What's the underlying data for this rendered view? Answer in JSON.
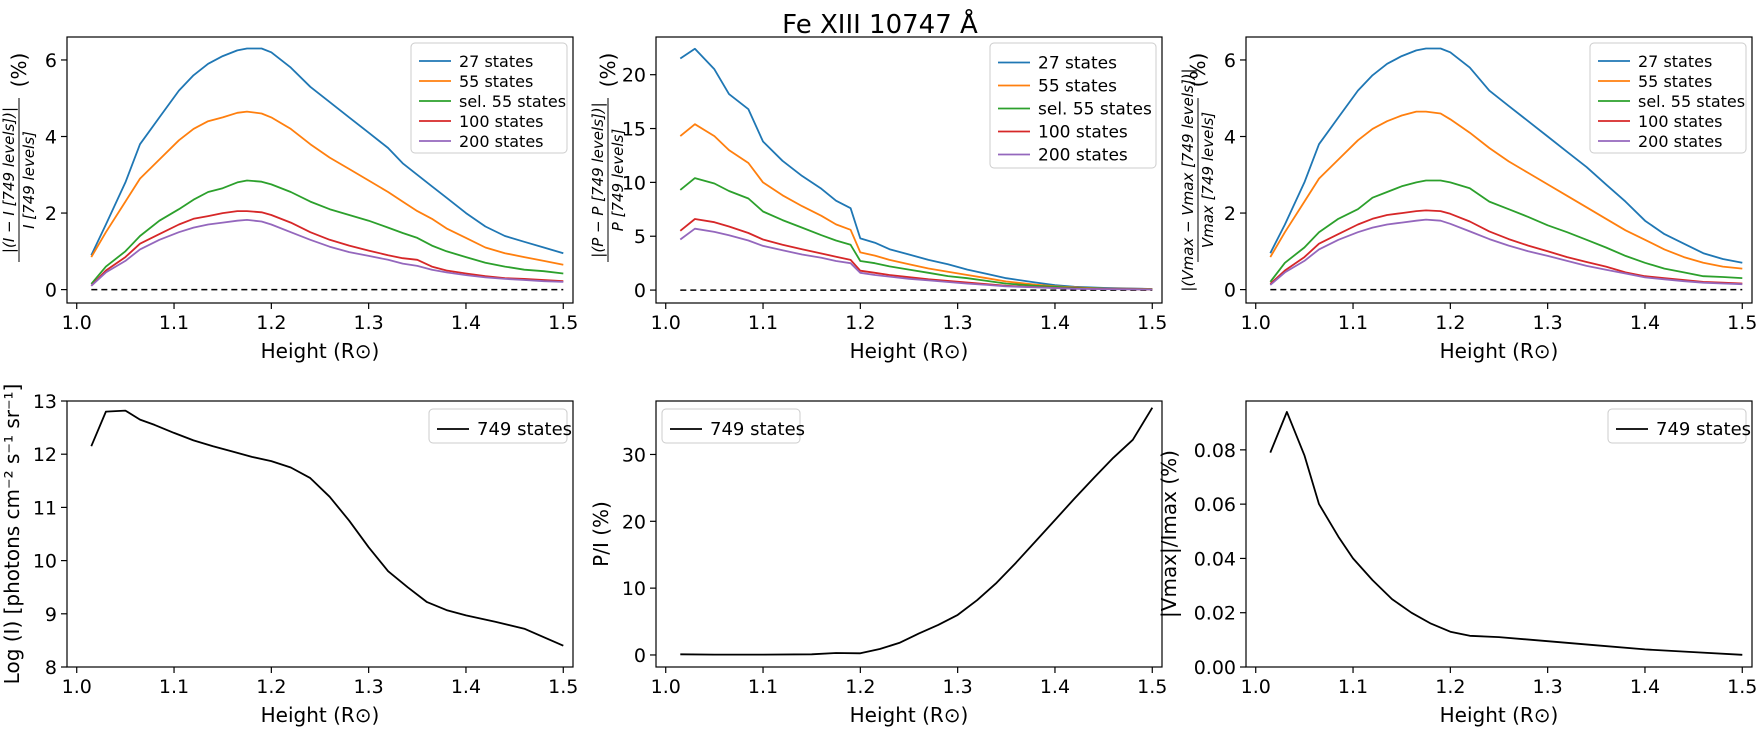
{
  "figure": {
    "title": "Fe XIII 10747 Å"
  },
  "chart_data": [
    {
      "id": "p1",
      "type": "line",
      "xlabel": "Height (R⊙)",
      "xlim": [
        0.99,
        1.51
      ],
      "ylim": [
        -0.35,
        6.6
      ],
      "xticks": [
        1.0,
        1.1,
        1.2,
        1.3,
        1.4,
        1.5
      ],
      "xticklabels": [
        "1.0",
        "1.1",
        "1.2",
        "1.3",
        "1.4",
        "1.5"
      ],
      "yticks": [
        0,
        2,
        4,
        6
      ],
      "yticklabels": [
        "0",
        "2",
        "4",
        "6"
      ],
      "ylabel_parts": {
        "numerator": "|(I − I [749 levels])|",
        "denominator": "I [749 levels]",
        "unit": "(%)"
      },
      "legend": "top-right",
      "x": [
        1.015,
        1.03,
        1.05,
        1.065,
        1.085,
        1.105,
        1.12,
        1.135,
        1.15,
        1.165,
        1.175,
        1.19,
        1.2,
        1.22,
        1.24,
        1.26,
        1.28,
        1.3,
        1.32,
        1.335,
        1.35,
        1.365,
        1.38,
        1.4,
        1.42,
        1.44,
        1.46,
        1.48,
        1.5
      ],
      "series": [
        {
          "name": "27 states",
          "color": "#1f77b4",
          "values": [
            0.9,
            1.7,
            2.8,
            3.8,
            4.5,
            5.2,
            5.6,
            5.9,
            6.1,
            6.25,
            6.3,
            6.3,
            6.2,
            5.8,
            5.3,
            4.9,
            4.5,
            4.1,
            3.7,
            3.3,
            3.0,
            2.7,
            2.4,
            2.0,
            1.65,
            1.4,
            1.25,
            1.1,
            0.95
          ]
        },
        {
          "name": "55 states",
          "color": "#ff7f0e",
          "values": [
            0.85,
            1.5,
            2.3,
            2.9,
            3.4,
            3.9,
            4.2,
            4.4,
            4.5,
            4.62,
            4.65,
            4.6,
            4.5,
            4.2,
            3.8,
            3.45,
            3.15,
            2.85,
            2.55,
            2.3,
            2.05,
            1.85,
            1.6,
            1.35,
            1.1,
            0.95,
            0.85,
            0.75,
            0.65
          ]
        },
        {
          "name": "sel. 55 states",
          "color": "#2ca02c",
          "values": [
            0.15,
            0.6,
            1.0,
            1.4,
            1.8,
            2.1,
            2.35,
            2.55,
            2.65,
            2.8,
            2.85,
            2.82,
            2.75,
            2.55,
            2.3,
            2.1,
            1.95,
            1.8,
            1.62,
            1.48,
            1.35,
            1.15,
            1.0,
            0.85,
            0.7,
            0.6,
            0.52,
            0.48,
            0.42
          ]
        },
        {
          "name": "100 states",
          "color": "#d62728",
          "values": [
            0.1,
            0.5,
            0.85,
            1.2,
            1.45,
            1.7,
            1.85,
            1.92,
            2.0,
            2.05,
            2.05,
            2.02,
            1.95,
            1.75,
            1.5,
            1.3,
            1.15,
            1.02,
            0.9,
            0.82,
            0.78,
            0.6,
            0.5,
            0.42,
            0.35,
            0.3,
            0.28,
            0.25,
            0.22
          ]
        },
        {
          "name": "200 states",
          "color": "#9467bd",
          "values": [
            0.1,
            0.45,
            0.75,
            1.05,
            1.3,
            1.5,
            1.62,
            1.7,
            1.75,
            1.8,
            1.82,
            1.78,
            1.7,
            1.5,
            1.3,
            1.12,
            0.98,
            0.88,
            0.78,
            0.68,
            0.62,
            0.52,
            0.45,
            0.38,
            0.32,
            0.28,
            0.25,
            0.22,
            0.2
          ]
        }
      ],
      "reference_line": {
        "y": 0,
        "style": "dashed"
      }
    },
    {
      "id": "p2",
      "type": "line",
      "xlabel": "Height (R⊙)",
      "xlim": [
        0.99,
        1.51
      ],
      "ylim": [
        -1.2,
        23.5
      ],
      "xticks": [
        1.0,
        1.1,
        1.2,
        1.3,
        1.4,
        1.5
      ],
      "xticklabels": [
        "1.0",
        "1.1",
        "1.2",
        "1.3",
        "1.4",
        "1.5"
      ],
      "yticks": [
        0,
        5,
        10,
        15,
        20
      ],
      "yticklabels": [
        "0",
        "5",
        "10",
        "15",
        "20"
      ],
      "ylabel_parts": {
        "numerator": "|(P − P [749 levels])|",
        "denominator": "P [749 levels]",
        "unit": "(%)"
      },
      "legend": "top-right",
      "x": [
        1.015,
        1.03,
        1.05,
        1.065,
        1.085,
        1.1,
        1.12,
        1.14,
        1.16,
        1.175,
        1.19,
        1.2,
        1.215,
        1.23,
        1.25,
        1.27,
        1.29,
        1.31,
        1.33,
        1.35,
        1.38,
        1.4,
        1.42,
        1.45,
        1.48,
        1.5
      ],
      "series": [
        {
          "name": "27 states",
          "color": "#1f77b4",
          "values": [
            21.5,
            22.4,
            20.5,
            18.2,
            16.8,
            13.8,
            12.0,
            10.6,
            9.4,
            8.3,
            7.6,
            4.8,
            4.4,
            3.8,
            3.3,
            2.8,
            2.4,
            1.9,
            1.5,
            1.1,
            0.7,
            0.45,
            0.3,
            0.2,
            0.15,
            0.1
          ]
        },
        {
          "name": "55 states",
          "color": "#ff7f0e",
          "values": [
            14.3,
            15.4,
            14.3,
            13.0,
            11.8,
            10.0,
            8.8,
            7.8,
            6.9,
            6.1,
            5.6,
            3.5,
            3.2,
            2.8,
            2.4,
            2.0,
            1.7,
            1.4,
            1.1,
            0.8,
            0.5,
            0.35,
            0.25,
            0.15,
            0.12,
            0.1
          ]
        },
        {
          "name": "sel. 55 states",
          "color": "#2ca02c",
          "values": [
            9.3,
            10.4,
            9.9,
            9.2,
            8.5,
            7.3,
            6.5,
            5.8,
            5.1,
            4.6,
            4.2,
            2.7,
            2.5,
            2.2,
            1.9,
            1.6,
            1.3,
            1.1,
            0.85,
            0.6,
            0.4,
            0.3,
            0.2,
            0.12,
            0.1,
            0.08
          ]
        },
        {
          "name": "100 states",
          "color": "#d62728",
          "values": [
            5.5,
            6.6,
            6.3,
            5.9,
            5.3,
            4.7,
            4.2,
            3.8,
            3.4,
            3.1,
            2.8,
            1.8,
            1.6,
            1.4,
            1.2,
            1.0,
            0.85,
            0.7,
            0.55,
            0.4,
            0.28,
            0.2,
            0.15,
            0.1,
            0.08,
            0.06
          ]
        },
        {
          "name": "200 states",
          "color": "#9467bd",
          "values": [
            4.7,
            5.7,
            5.4,
            5.1,
            4.6,
            4.1,
            3.7,
            3.3,
            3.0,
            2.7,
            2.5,
            1.6,
            1.4,
            1.25,
            1.05,
            0.9,
            0.75,
            0.6,
            0.48,
            0.35,
            0.25,
            0.18,
            0.12,
            0.09,
            0.07,
            0.05
          ]
        }
      ],
      "reference_line": {
        "y": 0,
        "style": "dashed"
      }
    },
    {
      "id": "p3",
      "type": "line",
      "xlabel": "Height (R⊙)",
      "xlim": [
        0.99,
        1.51
      ],
      "ylim": [
        -0.35,
        6.6
      ],
      "xticks": [
        1.0,
        1.1,
        1.2,
        1.3,
        1.4,
        1.5
      ],
      "xticklabels": [
        "1.0",
        "1.1",
        "1.2",
        "1.3",
        "1.4",
        "1.5"
      ],
      "yticks": [
        0,
        2,
        4,
        6
      ],
      "yticklabels": [
        "0",
        "2",
        "4",
        "6"
      ],
      "ylabel_parts": {
        "numerator": "|(Vmax − Vmax [749 levels])|",
        "denominator": "Vmax [749 levels]",
        "unit": "(%)"
      },
      "legend": "top-right",
      "x": [
        1.015,
        1.03,
        1.05,
        1.065,
        1.085,
        1.105,
        1.12,
        1.135,
        1.15,
        1.165,
        1.175,
        1.19,
        1.2,
        1.22,
        1.24,
        1.26,
        1.28,
        1.3,
        1.32,
        1.34,
        1.36,
        1.38,
        1.4,
        1.42,
        1.44,
        1.46,
        1.48,
        1.5
      ],
      "series": [
        {
          "name": "27 states",
          "color": "#1f77b4",
          "values": [
            0.95,
            1.7,
            2.8,
            3.8,
            4.5,
            5.2,
            5.6,
            5.9,
            6.1,
            6.25,
            6.3,
            6.3,
            6.2,
            5.8,
            5.2,
            4.8,
            4.4,
            4.0,
            3.6,
            3.2,
            2.75,
            2.3,
            1.8,
            1.45,
            1.2,
            0.95,
            0.8,
            0.7
          ]
        },
        {
          "name": "55 states",
          "color": "#ff7f0e",
          "values": [
            0.85,
            1.5,
            2.3,
            2.9,
            3.4,
            3.9,
            4.2,
            4.4,
            4.55,
            4.65,
            4.65,
            4.6,
            4.45,
            4.1,
            3.7,
            3.35,
            3.05,
            2.75,
            2.45,
            2.15,
            1.85,
            1.55,
            1.3,
            1.05,
            0.85,
            0.7,
            0.6,
            0.55
          ]
        },
        {
          "name": "sel. 55 states",
          "color": "#2ca02c",
          "values": [
            0.2,
            0.7,
            1.1,
            1.5,
            1.85,
            2.1,
            2.4,
            2.55,
            2.7,
            2.8,
            2.85,
            2.85,
            2.8,
            2.65,
            2.3,
            2.1,
            1.9,
            1.68,
            1.5,
            1.3,
            1.1,
            0.88,
            0.7,
            0.55,
            0.45,
            0.35,
            0.33,
            0.3
          ]
        },
        {
          "name": "100 states",
          "color": "#d62728",
          "values": [
            0.15,
            0.5,
            0.85,
            1.2,
            1.45,
            1.7,
            1.85,
            1.95,
            2.0,
            2.05,
            2.07,
            2.05,
            1.98,
            1.78,
            1.52,
            1.32,
            1.15,
            1.0,
            0.85,
            0.72,
            0.6,
            0.45,
            0.35,
            0.3,
            0.25,
            0.2,
            0.18,
            0.16
          ]
        },
        {
          "name": "200 states",
          "color": "#9467bd",
          "values": [
            0.12,
            0.45,
            0.75,
            1.05,
            1.3,
            1.5,
            1.62,
            1.7,
            1.75,
            1.8,
            1.83,
            1.8,
            1.72,
            1.52,
            1.32,
            1.15,
            1.0,
            0.88,
            0.75,
            0.62,
            0.52,
            0.42,
            0.32,
            0.27,
            0.22,
            0.18,
            0.16,
            0.14
          ]
        }
      ],
      "reference_line": {
        "y": 0,
        "style": "dashed"
      }
    },
    {
      "id": "p4",
      "type": "line",
      "xlabel": "Height (R⊙)",
      "xlim": [
        0.99,
        1.51
      ],
      "ylim": [
        8,
        13
      ],
      "xticks": [
        1.0,
        1.1,
        1.2,
        1.3,
        1.4,
        1.5
      ],
      "xticklabels": [
        "1.0",
        "1.1",
        "1.2",
        "1.3",
        "1.4",
        "1.5"
      ],
      "yticks": [
        8,
        9,
        10,
        11,
        12,
        13
      ],
      "yticklabels": [
        "8",
        "9",
        "10",
        "11",
        "12",
        "13"
      ],
      "ylabel": "Log (I) [photons cm⁻² s⁻¹ sr⁻¹]",
      "legend": "top-right",
      "x": [
        1.015,
        1.03,
        1.05,
        1.065,
        1.08,
        1.1,
        1.12,
        1.14,
        1.16,
        1.18,
        1.2,
        1.22,
        1.24,
        1.26,
        1.28,
        1.3,
        1.32,
        1.34,
        1.36,
        1.38,
        1.4,
        1.43,
        1.46,
        1.5
      ],
      "series": [
        {
          "name": "749 states",
          "color": "#000000",
          "values": [
            12.15,
            12.8,
            12.82,
            12.65,
            12.55,
            12.4,
            12.26,
            12.15,
            12.05,
            11.95,
            11.87,
            11.75,
            11.55,
            11.2,
            10.75,
            10.25,
            9.8,
            9.5,
            9.22,
            9.07,
            8.97,
            8.85,
            8.72,
            8.4
          ]
        }
      ]
    },
    {
      "id": "p5",
      "type": "line",
      "xlabel": "Height (R⊙)",
      "xlim": [
        0.99,
        1.51
      ],
      "ylim": [
        -1.8,
        38
      ],
      "xticks": [
        1.0,
        1.1,
        1.2,
        1.3,
        1.4,
        1.5
      ],
      "xticklabels": [
        "1.0",
        "1.1",
        "1.2",
        "1.3",
        "1.4",
        "1.5"
      ],
      "yticks": [
        0,
        10,
        20,
        30
      ],
      "yticklabels": [
        "0",
        "10",
        "20",
        "30"
      ],
      "ylabel": "P/I (%)",
      "legend": "top-left",
      "x": [
        1.015,
        1.05,
        1.1,
        1.15,
        1.175,
        1.2,
        1.22,
        1.24,
        1.26,
        1.28,
        1.3,
        1.32,
        1.34,
        1.36,
        1.38,
        1.4,
        1.42,
        1.44,
        1.46,
        1.48,
        1.5
      ],
      "series": [
        {
          "name": "749 states",
          "color": "#000000",
          "values": [
            0.1,
            0.05,
            0.05,
            0.1,
            0.3,
            0.25,
            0.9,
            1.8,
            3.2,
            4.5,
            6.0,
            8.2,
            10.8,
            13.8,
            17.0,
            20.2,
            23.4,
            26.5,
            29.5,
            32.2,
            37.0
          ]
        }
      ]
    },
    {
      "id": "p6",
      "type": "line",
      "xlabel": "Height (R⊙)",
      "xlim": [
        0.99,
        1.51
      ],
      "ylim": [
        0,
        0.098
      ],
      "xticks": [
        1.0,
        1.1,
        1.2,
        1.3,
        1.4,
        1.5
      ],
      "xticklabels": [
        "1.0",
        "1.1",
        "1.2",
        "1.3",
        "1.4",
        "1.5"
      ],
      "yticks": [
        0,
        0.02,
        0.04,
        0.06,
        0.08
      ],
      "yticklabels": [
        "0.00",
        "0.02",
        "0.04",
        "0.06",
        "0.08"
      ],
      "ylabel": "|Vmax|/Imax (%)",
      "legend": "top-right",
      "x": [
        1.015,
        1.032,
        1.05,
        1.065,
        1.085,
        1.1,
        1.12,
        1.14,
        1.16,
        1.18,
        1.2,
        1.22,
        1.25,
        1.3,
        1.35,
        1.4,
        1.45,
        1.5
      ],
      "series": [
        {
          "name": "749 states",
          "color": "#000000",
          "values": [
            0.079,
            0.094,
            0.078,
            0.06,
            0.048,
            0.04,
            0.032,
            0.025,
            0.02,
            0.016,
            0.013,
            0.0115,
            0.011,
            0.0095,
            0.008,
            0.0065,
            0.0055,
            0.0045
          ]
        }
      ]
    }
  ]
}
